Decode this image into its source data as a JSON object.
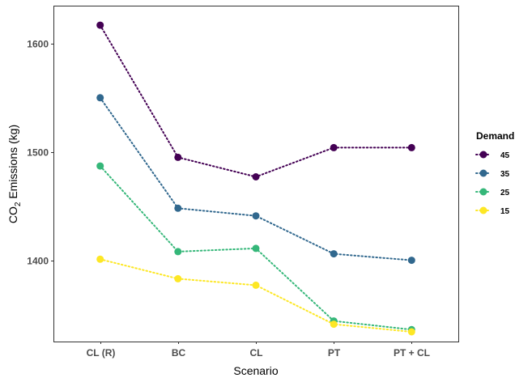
{
  "chart_data": {
    "type": "line",
    "title": "",
    "xlabel": "Scenario",
    "ylabel": {
      "prefix": "CO",
      "subscript": "2",
      "suffix": " Emissions (kg)"
    },
    "categories": [
      "CL (R)",
      "BC",
      "CL",
      "PT",
      "PT + CL"
    ],
    "ylim": [
      1325,
      1635
    ],
    "y_major_ticks": [
      1400,
      1500,
      1600
    ],
    "y_minor_ticks": [
      1350,
      1450,
      1550
    ],
    "grid": true,
    "line_style": "dotted",
    "legend": {
      "title": "Demand",
      "position": "right"
    },
    "series": [
      {
        "name": "45",
        "color": "#440154",
        "values": [
          1617,
          1495,
          1477,
          1504,
          1504
        ]
      },
      {
        "name": "35",
        "color": "#31688E",
        "values": [
          1550,
          1448,
          1441,
          1406,
          1400
        ]
      },
      {
        "name": "25",
        "color": "#35B779",
        "values": [
          1487,
          1408,
          1411,
          1344,
          1336
        ]
      },
      {
        "name": "15",
        "color": "#FDE725",
        "values": [
          1401,
          1383,
          1377,
          1341,
          1334
        ]
      }
    ]
  }
}
